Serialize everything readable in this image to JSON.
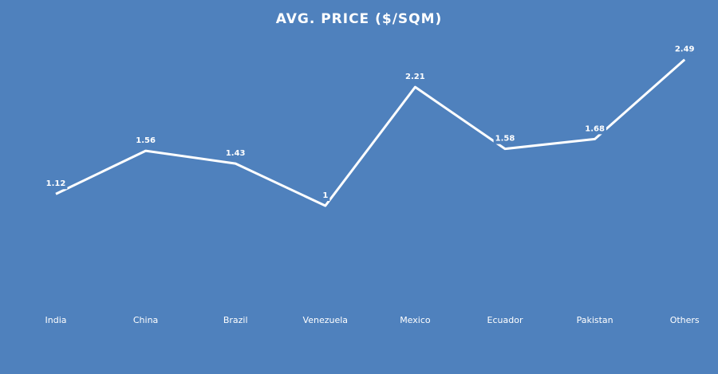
{
  "chart_data": {
    "type": "line",
    "title": "AVG. PRICE ($/SQM)",
    "categories": [
      "India",
      "China",
      "Brazil",
      "Venezuela",
      "Mexico",
      "Ecuador",
      "Pakistan",
      "Others"
    ],
    "values": [
      1.12,
      1.56,
      1.43,
      1,
      2.21,
      1.58,
      1.68,
      2.49
    ],
    "color": "#ffffff",
    "background": "#4f81bd",
    "drop_lines": true,
    "data_labels": true
  }
}
